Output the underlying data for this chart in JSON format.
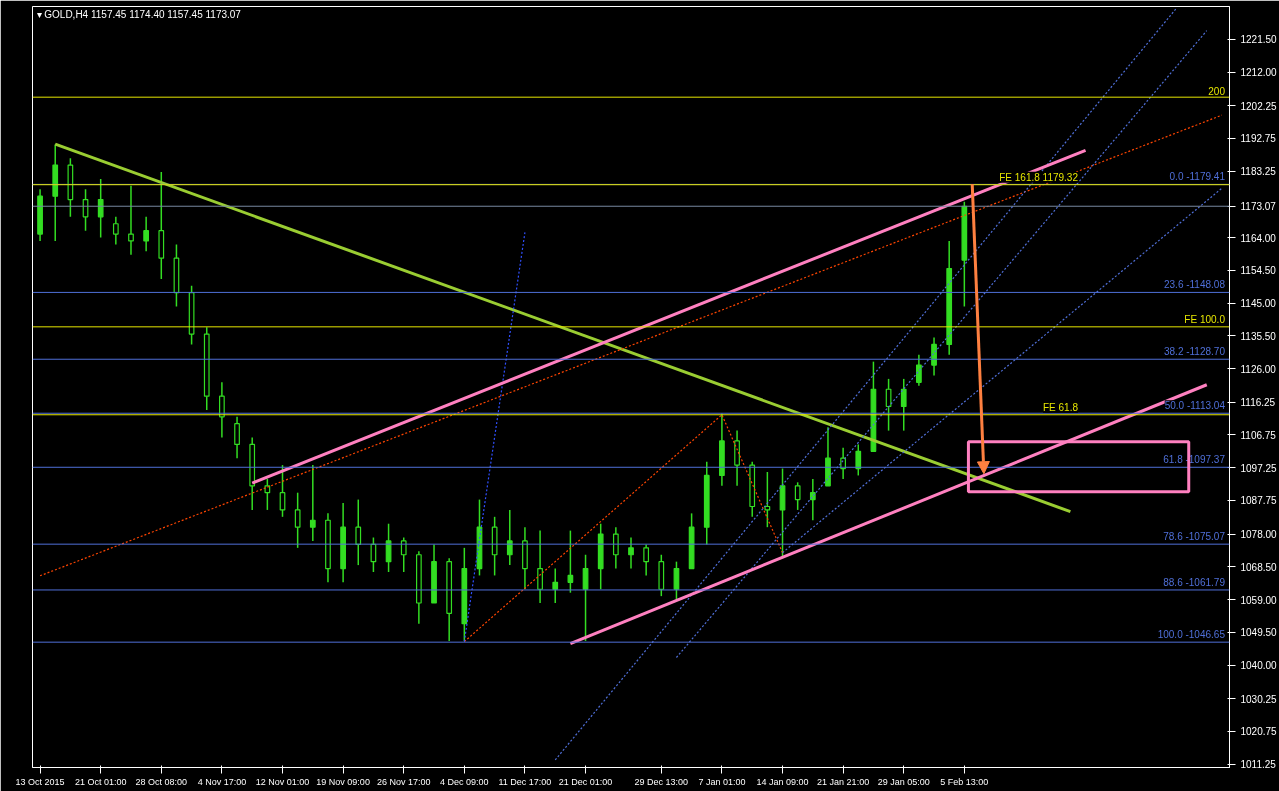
{
  "chart_data": {
    "type": "candlestick",
    "title": "▾ GOLD,H4  1157.45 1174.40 1157.45 1173.07",
    "color": "#33dd22",
    "categories": [
      "13 Oct 2015",
      null,
      null,
      null,
      "21 Oct 01:00",
      null,
      null,
      null,
      "28 Oct 08:00",
      null,
      null,
      null,
      "4 Nov 17:00",
      null,
      null,
      null,
      "12 Nov 01:00",
      null,
      null,
      null,
      "19 Nov 09:00",
      null,
      null,
      null,
      "26 Nov 17:00",
      null,
      null,
      null,
      "4 Dec 09:00",
      null,
      null,
      null,
      "11 Dec 17:00",
      null,
      null,
      null,
      "21 Dec 01:00",
      null,
      null,
      null,
      null,
      "29 Dec 13:00",
      null,
      null,
      null,
      "7 Jan 01:00",
      null,
      null,
      null,
      "14 Jan 09:00",
      null,
      null,
      null,
      "21 Jan 21:00",
      null,
      null,
      null,
      "29 Jan 05:00",
      null,
      null,
      null,
      "5 Feb 13:00",
      null,
      null,
      null,
      null,
      null,
      null,
      null,
      null,
      null,
      null,
      null,
      null,
      null,
      null,
      null,
      null,
      null
    ],
    "ohlc": [
      [
        1165,
        1178,
        1163,
        1176
      ],
      [
        1176,
        1191,
        1163,
        1185
      ],
      [
        1185,
        1187,
        1170,
        1175
      ],
      [
        1175,
        1178,
        1166,
        1170
      ],
      [
        1170,
        1181,
        1164,
        1175
      ],
      [
        1168,
        1170,
        1162,
        1165
      ],
      [
        1165,
        1179,
        1159,
        1163
      ],
      [
        1163,
        1170,
        1160,
        1166
      ],
      [
        1166,
        1183,
        1152,
        1158
      ],
      [
        1158,
        1162,
        1144,
        1148
      ],
      [
        1148,
        1150,
        1133,
        1136
      ],
      [
        1136,
        1138,
        1114,
        1118
      ],
      [
        1118,
        1122,
        1106,
        1112
      ],
      [
        1110,
        1112,
        1100,
        1104
      ],
      [
        1104,
        1106,
        1085,
        1092
      ],
      [
        1092,
        1094,
        1085,
        1090
      ],
      [
        1090,
        1098,
        1083,
        1085
      ],
      [
        1085,
        1090,
        1074,
        1080
      ],
      [
        1080,
        1098,
        1076,
        1082
      ],
      [
        1082,
        1084,
        1064,
        1068
      ],
      [
        1068,
        1087,
        1064,
        1080
      ],
      [
        1080,
        1088,
        1069,
        1075
      ],
      [
        1075,
        1077,
        1067,
        1070
      ],
      [
        1070,
        1081,
        1067,
        1076
      ],
      [
        1076,
        1077,
        1067,
        1072
      ],
      [
        1072,
        1073,
        1052,
        1058
      ],
      [
        1058,
        1075,
        1058,
        1070
      ],
      [
        1070,
        1071,
        1047,
        1055
      ],
      [
        1052,
        1074,
        1047,
        1068
      ],
      [
        1068,
        1088,
        1066,
        1080
      ],
      [
        1080,
        1083,
        1066,
        1072
      ],
      [
        1072,
        1085,
        1069,
        1076
      ],
      [
        1076,
        1080,
        1062,
        1068
      ],
      [
        1068,
        1079,
        1058,
        1062
      ],
      [
        1062,
        1068,
        1058,
        1064
      ],
      [
        1064,
        1079,
        1061,
        1066
      ],
      [
        1062,
        1072,
        1047,
        1068
      ],
      [
        1068,
        1081,
        1062,
        1078
      ],
      [
        1078,
        1080,
        1068,
        1072
      ],
      [
        1072,
        1077,
        1068,
        1074
      ],
      [
        1074,
        1075,
        1066,
        1070
      ],
      [
        1070,
        1072,
        1060,
        1062
      ],
      [
        1062,
        1070,
        1059,
        1068
      ],
      [
        1068,
        1084,
        1068,
        1080
      ],
      [
        1080,
        1099,
        1075,
        1095
      ],
      [
        1095,
        1113,
        1092,
        1105
      ],
      [
        1105,
        1108,
        1092,
        1098
      ],
      [
        1098,
        1099,
        1083,
        1086
      ],
      [
        1086,
        1096,
        1080,
        1085
      ],
      [
        1085,
        1097,
        1071,
        1092
      ],
      [
        1092,
        1093,
        1085,
        1088
      ],
      [
        1088,
        1094,
        1082,
        1090
      ],
      [
        1092,
        1109,
        1092,
        1100
      ],
      [
        1100,
        1103,
        1094,
        1097
      ],
      [
        1097,
        1104,
        1095,
        1102
      ],
      [
        1102,
        1128,
        1102,
        1120
      ],
      [
        1120,
        1123,
        1108,
        1115
      ],
      [
        1115,
        1123,
        1108,
        1120
      ],
      [
        1122,
        1130,
        1121,
        1127
      ],
      [
        1127,
        1135,
        1124,
        1133
      ],
      [
        1133,
        1163,
        1130,
        1155
      ],
      [
        1157.45,
        1174.4,
        1144,
        1173.07
      ],
      null,
      null,
      null,
      null,
      null,
      null,
      null,
      null,
      null,
      null,
      null,
      null,
      null,
      null,
      null,
      null,
      null
    ],
    "ylim": [
      1010.3,
      1231
    ],
    "yticks": [
      {
        "value": 1011.25,
        "label": "1011.25"
      },
      {
        "value": 1020.75,
        "label": "1020.75"
      },
      {
        "value": 1030.25,
        "label": "1030.25"
      },
      {
        "value": 1040,
        "label": "1040.00"
      },
      {
        "value": 1049.5,
        "label": "1049.50"
      },
      {
        "value": 1059,
        "label": "1059.00"
      },
      {
        "value": 1068.5,
        "label": "1068.50"
      },
      {
        "value": 1078,
        "label": "1078.00"
      },
      {
        "value": 1087.75,
        "label": "1087.75"
      },
      {
        "value": 1097.25,
        "label": "1097.25"
      },
      {
        "value": 1106.75,
        "label": "1106.75"
      },
      {
        "value": 1116.25,
        "label": "1116.25"
      },
      {
        "value": 1126,
        "label": "1126.00"
      },
      {
        "value": 1135.5,
        "label": "1135.50"
      },
      {
        "value": 1145,
        "label": "1145.00"
      },
      {
        "value": 1154.5,
        "label": "1154.50"
      },
      {
        "value": 1164,
        "label": "1164.00"
      },
      {
        "value": 1173.07,
        "label": "1173.07"
      },
      {
        "value": 1183.25,
        "label": "1183.25"
      },
      {
        "value": 1192.75,
        "label": "1192.75"
      },
      {
        "value": 1202.25,
        "label": "1202.25"
      },
      {
        "value": 1212,
        "label": "1212.00"
      },
      {
        "value": 1221.5,
        "label": "1221.50"
      }
    ],
    "ref_lines": [
      {
        "axis": "y",
        "value": 1204.7,
        "color": "#e6e600"
      },
      {
        "axis": "y",
        "value": 1179.41,
        "color": "#4f6fd8"
      },
      {
        "axis": "y",
        "value": 1179.32,
        "color": "#e6e600"
      },
      {
        "axis": "y",
        "value": 1173.07,
        "color": "#7888a0"
      },
      {
        "axis": "y",
        "value": 1148.08,
        "color": "#4f6fd8"
      },
      {
        "axis": "y",
        "value": 1138.1,
        "color": "#e6e600"
      },
      {
        "axis": "y",
        "value": 1128.7,
        "color": "#4f6fd8"
      },
      {
        "axis": "y",
        "value": 1113.04,
        "color": "#4f6fd8"
      },
      {
        "axis": "y",
        "value": 1112.6,
        "color": "#e6e600"
      },
      {
        "axis": "y",
        "value": 1097.37,
        "color": "#4f6fd8"
      },
      {
        "axis": "y",
        "value": 1075.07,
        "color": "#4f6fd8"
      },
      {
        "axis": "y",
        "value": 1061.79,
        "color": "#4f6fd8"
      },
      {
        "axis": "y",
        "value": 1046.65,
        "color": "#4f6fd8"
      }
    ],
    "annotations": [
      {
        "text": "200",
        "y": 1204.7
      },
      {
        "text": "0.0 -1179.41",
        "y": 1179.41
      },
      {
        "text": "FE 161.8 1179.32",
        "y": 1179.32
      },
      {
        "text": "23.6 -1148.08",
        "y": 1148.08
      },
      {
        "text": "FE 100.0",
        "y": 1138.1
      },
      {
        "text": "38.2 -1128.70",
        "y": 1128.7
      },
      {
        "text": "50.0 -1113.04",
        "y": 1113.04
      },
      {
        "text": "FE 61.8",
        "y": 1112.6
      },
      {
        "text": "61.8 -1097.37",
        "y": 1097.37
      },
      {
        "text": "78.6 -1075.07",
        "y": 1075.07
      },
      {
        "text": "88.6 -1061.79",
        "y": 1061.79
      },
      {
        "text": "100.0 -1046.65",
        "y": 1046.65
      }
    ],
    "series": [
      {
        "type": "line",
        "color": "#9acd32",
        "line_style": "solid",
        "values": [
          null,
          1191.1,
          null,
          null,
          null,
          null,
          null,
          null,
          null,
          null,
          null,
          null,
          null,
          null,
          null,
          null,
          null,
          null,
          null,
          null,
          null,
          null,
          null,
          null,
          null,
          null,
          null,
          null,
          null,
          null,
          null,
          null,
          null,
          null,
          null,
          null,
          null,
          null,
          null,
          null,
          null,
          null,
          null,
          null,
          null,
          null,
          null,
          null,
          null,
          null,
          null,
          null,
          null,
          null,
          null,
          null,
          null,
          null,
          null,
          null,
          null,
          null,
          null,
          null,
          null,
          null,
          null,
          null,
          1084.5,
          null,
          null,
          null,
          null,
          null,
          null,
          null,
          null,
          null,
          null
        ]
      },
      {
        "type": "line",
        "color": "#ff4500",
        "line_style": "dotted",
        "values": [
          1065.9,
          null,
          null,
          null,
          null,
          null,
          null,
          null,
          null,
          null,
          null,
          null,
          null,
          null,
          null,
          null,
          null,
          null,
          null,
          null,
          null,
          null,
          null,
          null,
          null,
          null,
          null,
          null,
          null,
          null,
          null,
          null,
          null,
          null,
          null,
          null,
          null,
          null,
          null,
          null,
          null,
          null,
          null,
          null,
          null,
          null,
          null,
          null,
          null,
          null,
          null,
          null,
          null,
          null,
          null,
          null,
          null,
          null,
          null,
          null,
          null,
          null,
          null,
          null,
          null,
          null,
          null,
          null,
          null,
          null,
          null,
          null,
          null,
          null,
          null,
          null,
          null,
          null,
          1199.5
        ]
      },
      {
        "type": "line",
        "color": "#ff4500",
        "line_style": "dotted",
        "values": [
          null,
          null,
          null,
          null,
          null,
          null,
          null,
          null,
          null,
          null,
          null,
          null,
          null,
          null,
          null,
          null,
          null,
          null,
          null,
          null,
          null,
          null,
          null,
          null,
          null,
          null,
          null,
          null,
          1046.8,
          null,
          null,
          null,
          null,
          null,
          null,
          null,
          null,
          null,
          null,
          null,
          null,
          null,
          null,
          null,
          null,
          1112.6,
          null,
          null,
          null,
          1072.6,
          null,
          null,
          null,
          null,
          null,
          null,
          null,
          null,
          null,
          null,
          null,
          null,
          null,
          null,
          null,
          null,
          null,
          null,
          null,
          null,
          null,
          null,
          null,
          null,
          null,
          null,
          null,
          null,
          null
        ]
      },
      {
        "type": "line",
        "color": "#3050ff",
        "line_style": "dotted",
        "values": [
          null,
          null,
          null,
          null,
          null,
          null,
          null,
          null,
          null,
          null,
          null,
          null,
          null,
          null,
          null,
          null,
          null,
          null,
          null,
          null,
          null,
          null,
          null,
          null,
          null,
          null,
          null,
          null,
          1046.8,
          null,
          null,
          null,
          1165.5,
          null,
          null,
          null,
          null,
          null,
          null,
          null,
          null,
          null,
          null,
          null,
          null,
          null,
          null,
          null,
          null,
          null,
          null,
          null,
          null,
          null,
          null,
          null,
          null,
          null,
          null,
          null,
          null,
          null,
          null,
          null,
          null,
          null,
          null,
          null,
          null,
          null,
          null,
          null,
          null,
          null,
          null,
          null,
          null,
          null,
          null
        ]
      },
      {
        "type": "line",
        "color": "#4f6fd8",
        "line_style": "dotted",
        "values": [
          null,
          null,
          null,
          null,
          null,
          null,
          null,
          null,
          null,
          null,
          null,
          null,
          null,
          null,
          null,
          null,
          null,
          null,
          null,
          null,
          null,
          null,
          null,
          null,
          null,
          null,
          null,
          null,
          null,
          null,
          null,
          null,
          null,
          null,
          1012.5,
          null,
          null,
          null,
          null,
          null,
          null,
          null,
          null,
          null,
          null,
          null,
          null,
          null,
          null,
          null,
          null,
          null,
          null,
          null,
          null,
          null,
          null,
          null,
          null,
          null,
          null,
          null,
          null,
          null,
          null,
          null,
          null,
          null,
          null,
          null,
          null,
          null,
          null,
          null,
          null,
          1230.5,
          null,
          null,
          null
        ]
      },
      {
        "type": "line",
        "color": "#4f6fd8",
        "line_style": "dotted",
        "values": [
          null,
          null,
          null,
          null,
          null,
          null,
          null,
          null,
          null,
          null,
          null,
          null,
          null,
          null,
          null,
          null,
          null,
          null,
          null,
          null,
          null,
          null,
          null,
          null,
          null,
          null,
          null,
          null,
          null,
          null,
          null,
          null,
          null,
          null,
          null,
          null,
          null,
          null,
          null,
          null,
          null,
          null,
          1042.2,
          null,
          null,
          null,
          null,
          null,
          null,
          null,
          null,
          null,
          null,
          null,
          null,
          null,
          null,
          null,
          null,
          null,
          null,
          null,
          null,
          null,
          null,
          null,
          null,
          null,
          null,
          null,
          null,
          null,
          null,
          null,
          null,
          null,
          null,
          1224.0,
          null
        ]
      },
      {
        "type": "line",
        "color": "#4f6fd8",
        "line_style": "dotted",
        "values": [
          null,
          null,
          null,
          null,
          null,
          null,
          null,
          null,
          null,
          null,
          null,
          null,
          null,
          null,
          null,
          null,
          null,
          null,
          null,
          null,
          null,
          null,
          null,
          null,
          null,
          null,
          null,
          null,
          null,
          null,
          null,
          null,
          null,
          null,
          null,
          null,
          null,
          null,
          null,
          null,
          null,
          null,
          null,
          null,
          null,
          null,
          null,
          null,
          null,
          1072.6,
          null,
          null,
          null,
          null,
          null,
          null,
          null,
          null,
          null,
          null,
          null,
          null,
          null,
          null,
          null,
          null,
          null,
          null,
          null,
          null,
          null,
          null,
          null,
          null,
          null,
          null,
          null,
          null,
          1178.3
        ]
      },
      {
        "type": "line",
        "color": "#ff80c0",
        "line_style": "solid",
        "values": [
          null,
          null,
          null,
          null,
          null,
          null,
          null,
          null,
          null,
          null,
          null,
          null,
          null,
          null,
          1092.8,
          null,
          null,
          null,
          null,
          null,
          null,
          null,
          null,
          null,
          null,
          null,
          null,
          null,
          null,
          null,
          null,
          null,
          null,
          null,
          null,
          null,
          null,
          null,
          null,
          null,
          null,
          null,
          null,
          null,
          null,
          null,
          null,
          null,
          null,
          null,
          null,
          null,
          null,
          null,
          null,
          null,
          null,
          null,
          null,
          null,
          null,
          null,
          null,
          null,
          null,
          null,
          null,
          null,
          null,
          1189.3,
          null,
          null,
          null,
          null,
          null,
          null,
          null,
          null,
          null
        ]
      },
      {
        "type": "line",
        "color": "#ff80c0",
        "line_style": "solid",
        "values": [
          null,
          null,
          null,
          null,
          null,
          null,
          null,
          null,
          null,
          null,
          null,
          null,
          null,
          null,
          null,
          null,
          null,
          null,
          null,
          null,
          null,
          null,
          null,
          null,
          null,
          null,
          null,
          null,
          null,
          null,
          null,
          null,
          null,
          null,
          null,
          1046.2,
          null,
          null,
          null,
          null,
          null,
          null,
          null,
          null,
          null,
          null,
          null,
          null,
          null,
          null,
          null,
          null,
          null,
          null,
          null,
          null,
          null,
          null,
          null,
          null,
          null,
          null,
          null,
          null,
          null,
          null,
          null,
          null,
          null,
          null,
          null,
          null,
          null,
          null,
          null,
          null,
          null,
          1121.3,
          null
        ]
      }
    ],
    "grid": false
  }
}
